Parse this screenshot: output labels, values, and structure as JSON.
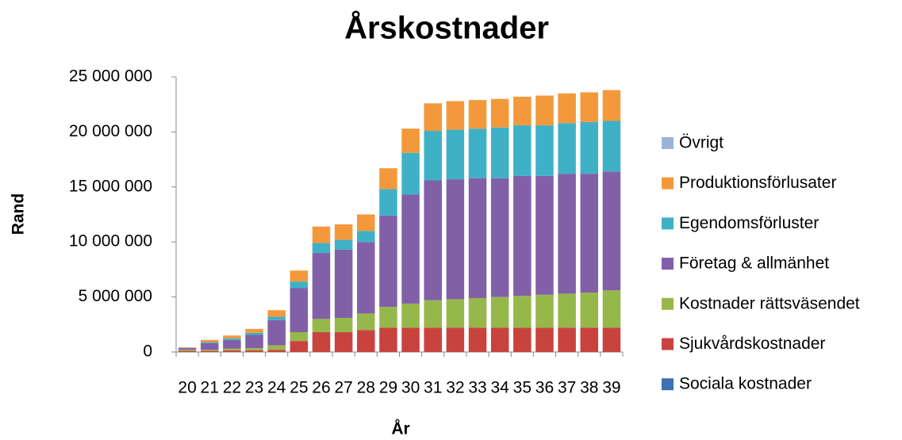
{
  "chart_data": {
    "type": "stacked_bar",
    "title": "Årskostnader",
    "xlabel": "År",
    "ylabel": "Rand",
    "categories": [
      "20",
      "21",
      "22",
      "23",
      "24",
      "25",
      "26",
      "27",
      "28",
      "29",
      "30",
      "31",
      "32",
      "33",
      "34",
      "35",
      "36",
      "37",
      "38",
      "39"
    ],
    "series": [
      {
        "name": "Sociala kostnader",
        "color": "#3d70b5",
        "values": [
          0,
          0,
          0,
          0,
          0,
          0,
          0,
          0,
          0,
          0,
          0,
          0,
          0,
          0,
          0,
          0,
          0,
          0,
          0,
          0
        ]
      },
      {
        "name": "Sjukvårdskostnader",
        "color": "#c9433e",
        "values": [
          100000,
          100000,
          150000,
          150000,
          200000,
          1000000,
          1800000,
          1800000,
          2000000,
          2200000,
          2200000,
          2200000,
          2200000,
          2200000,
          2200000,
          2200000,
          2200000,
          2200000,
          2200000,
          2200000
        ]
      },
      {
        "name": "Kostnader rättsväsendet",
        "color": "#96b84b",
        "values": [
          100000,
          100000,
          150000,
          200000,
          400000,
          800000,
          1200000,
          1300000,
          1500000,
          1900000,
          2200000,
          2500000,
          2600000,
          2700000,
          2800000,
          2900000,
          3000000,
          3100000,
          3200000,
          3400000
        ]
      },
      {
        "name": "Företag & allmänhet",
        "color": "#8160a8",
        "values": [
          150000,
          600000,
          800000,
          1200000,
          2300000,
          4000000,
          6000000,
          6200000,
          6500000,
          8300000,
          9900000,
          10900000,
          10900000,
          10900000,
          10800000,
          10900000,
          10800000,
          10900000,
          10800000,
          10800000
        ]
      },
      {
        "name": "Egendomsförluster",
        "color": "#3fb1c6",
        "values": [
          30000,
          100000,
          150000,
          200000,
          300000,
          600000,
          900000,
          900000,
          1000000,
          2400000,
          3800000,
          4500000,
          4500000,
          4500000,
          4600000,
          4600000,
          4600000,
          4600000,
          4700000,
          4600000
        ]
      },
      {
        "name": "Produktionsförlusater",
        "color": "#f3993b",
        "values": [
          50000,
          200000,
          250000,
          350000,
          600000,
          1000000,
          1500000,
          1400000,
          1500000,
          1900000,
          2200000,
          2500000,
          2600000,
          2600000,
          2600000,
          2600000,
          2700000,
          2700000,
          2700000,
          2800000
        ]
      },
      {
        "name": "Övrigt",
        "color": "#9bb3d8",
        "values": [
          0,
          0,
          0,
          0,
          0,
          0,
          0,
          0,
          0,
          0,
          0,
          0,
          0,
          0,
          0,
          0,
          0,
          0,
          0,
          0
        ]
      }
    ],
    "ylim": [
      0,
      25000000
    ],
    "yticks": [
      {
        "value": 0,
        "label": "0"
      },
      {
        "value": 5000000,
        "label": "5 000 000"
      },
      {
        "value": 10000000,
        "label": "10 000 000"
      },
      {
        "value": 15000000,
        "label": "15 000 000"
      },
      {
        "value": 20000000,
        "label": "20 000 000"
      },
      {
        "value": 25000000,
        "label": "25 000 000"
      }
    ],
    "grid": false,
    "legend": "right"
  }
}
